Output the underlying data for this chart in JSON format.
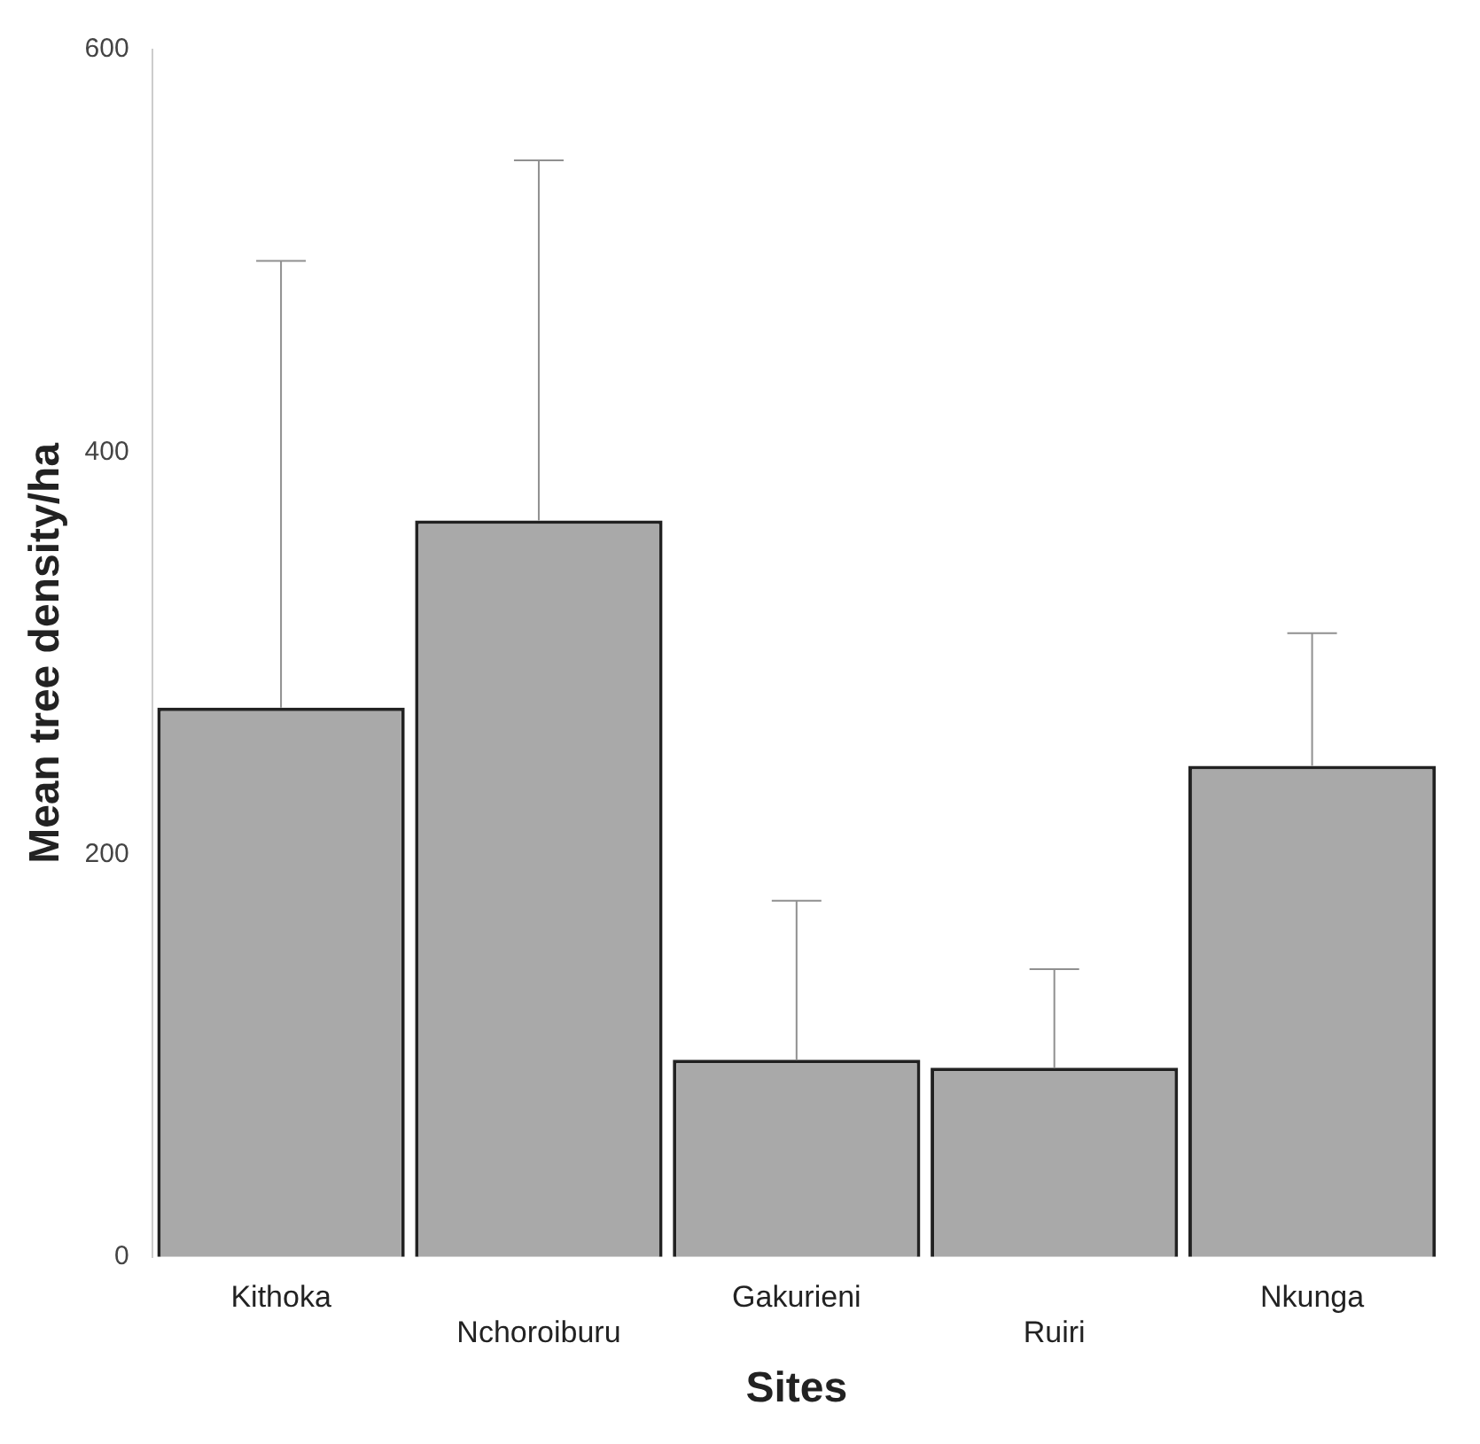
{
  "chart_data": {
    "type": "bar",
    "xlabel": "Sites",
    "ylabel": "Mean tree density/ha",
    "categories": [
      "Kithoka",
      "Nchoroiburu",
      "Gakurieni",
      "Ruiri",
      "Nkunga"
    ],
    "values": [
      273,
      366,
      98,
      94,
      244
    ],
    "errors": [
      [
        273,
        495
      ],
      [
        366,
        545
      ],
      [
        98,
        177
      ],
      [
        94,
        143
      ],
      [
        244,
        310
      ]
    ],
    "color": "#a9a9a9",
    "ylim": [
      0,
      600
    ],
    "yticks": [
      0,
      200,
      400,
      600
    ],
    "grid": false,
    "legend": false
  }
}
